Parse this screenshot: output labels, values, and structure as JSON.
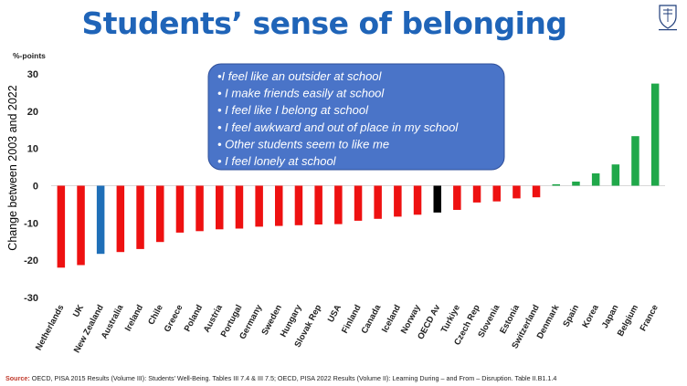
{
  "title": "Students’ sense of belonging",
  "source_prefix": "Source:",
  "source_text": "OECD, PISA 2015 Results (Volume III): Students' Well-Being. Tables III 7.4 & III 7.5; OECD, PISA 2022 Results (Volume II): Learning During – and From – Disruption. Table II.B1.1.4",
  "logo_icon": "university-crest-icon",
  "colors": {
    "negative": "#ee1111",
    "positive": "#20a84a",
    "highlight": "#1f6fb8",
    "oecd": "#000000",
    "callout": "#4a74c8",
    "title": "#1f64b8"
  },
  "callout_items": [
    "•I feel like an outsider at school",
    "• I make friends easily at school",
    "• I feel like I belong at school",
    "• I feel awkward and out of place in my school",
    "• Other students seem to like me",
    "• I feel lonely at school"
  ],
  "chart_data": {
    "type": "bar",
    "title": "",
    "ylabel": "Change between 2003 and 2022",
    "yunit": "%-points",
    "ylim": [
      -30,
      30
    ],
    "yticks": [
      -30,
      -20,
      -10,
      0,
      10,
      20,
      30
    ],
    "grid": false,
    "categories": [
      "Netherlands",
      "UK",
      "New Zealand",
      "Australia",
      "Ireland",
      "Chile",
      "Greece",
      "Poland",
      "Austria",
      "Portugal",
      "Germany",
      "Sweden",
      "Hungary",
      "Slovak Rep",
      "USA",
      "Finland",
      "Canada",
      "Iceland",
      "Norway",
      "OECD Av",
      "Turkiye",
      "Czech Rep",
      "Slovenia",
      "Estonia",
      "Switzerland",
      "Denmark",
      "Spain",
      "Korea",
      "Japan",
      "Belgium",
      "France"
    ],
    "values": [
      -22,
      -21.3,
      -18.3,
      -17.8,
      -17,
      -15.1,
      -12.6,
      -12.2,
      -11.7,
      -11.5,
      -11,
      -10.8,
      -10.6,
      -10.4,
      -10.3,
      -9.4,
      -8.9,
      -8.3,
      -7.8,
      -7.2,
      -6.5,
      -4.5,
      -4.2,
      -3.4,
      -3.1,
      0.4,
      1.1,
      3.3,
      5.7,
      13.3,
      27.4
    ],
    "highlight": {
      "New Zealand": "highlight",
      "OECD Av": "oecd"
    }
  }
}
